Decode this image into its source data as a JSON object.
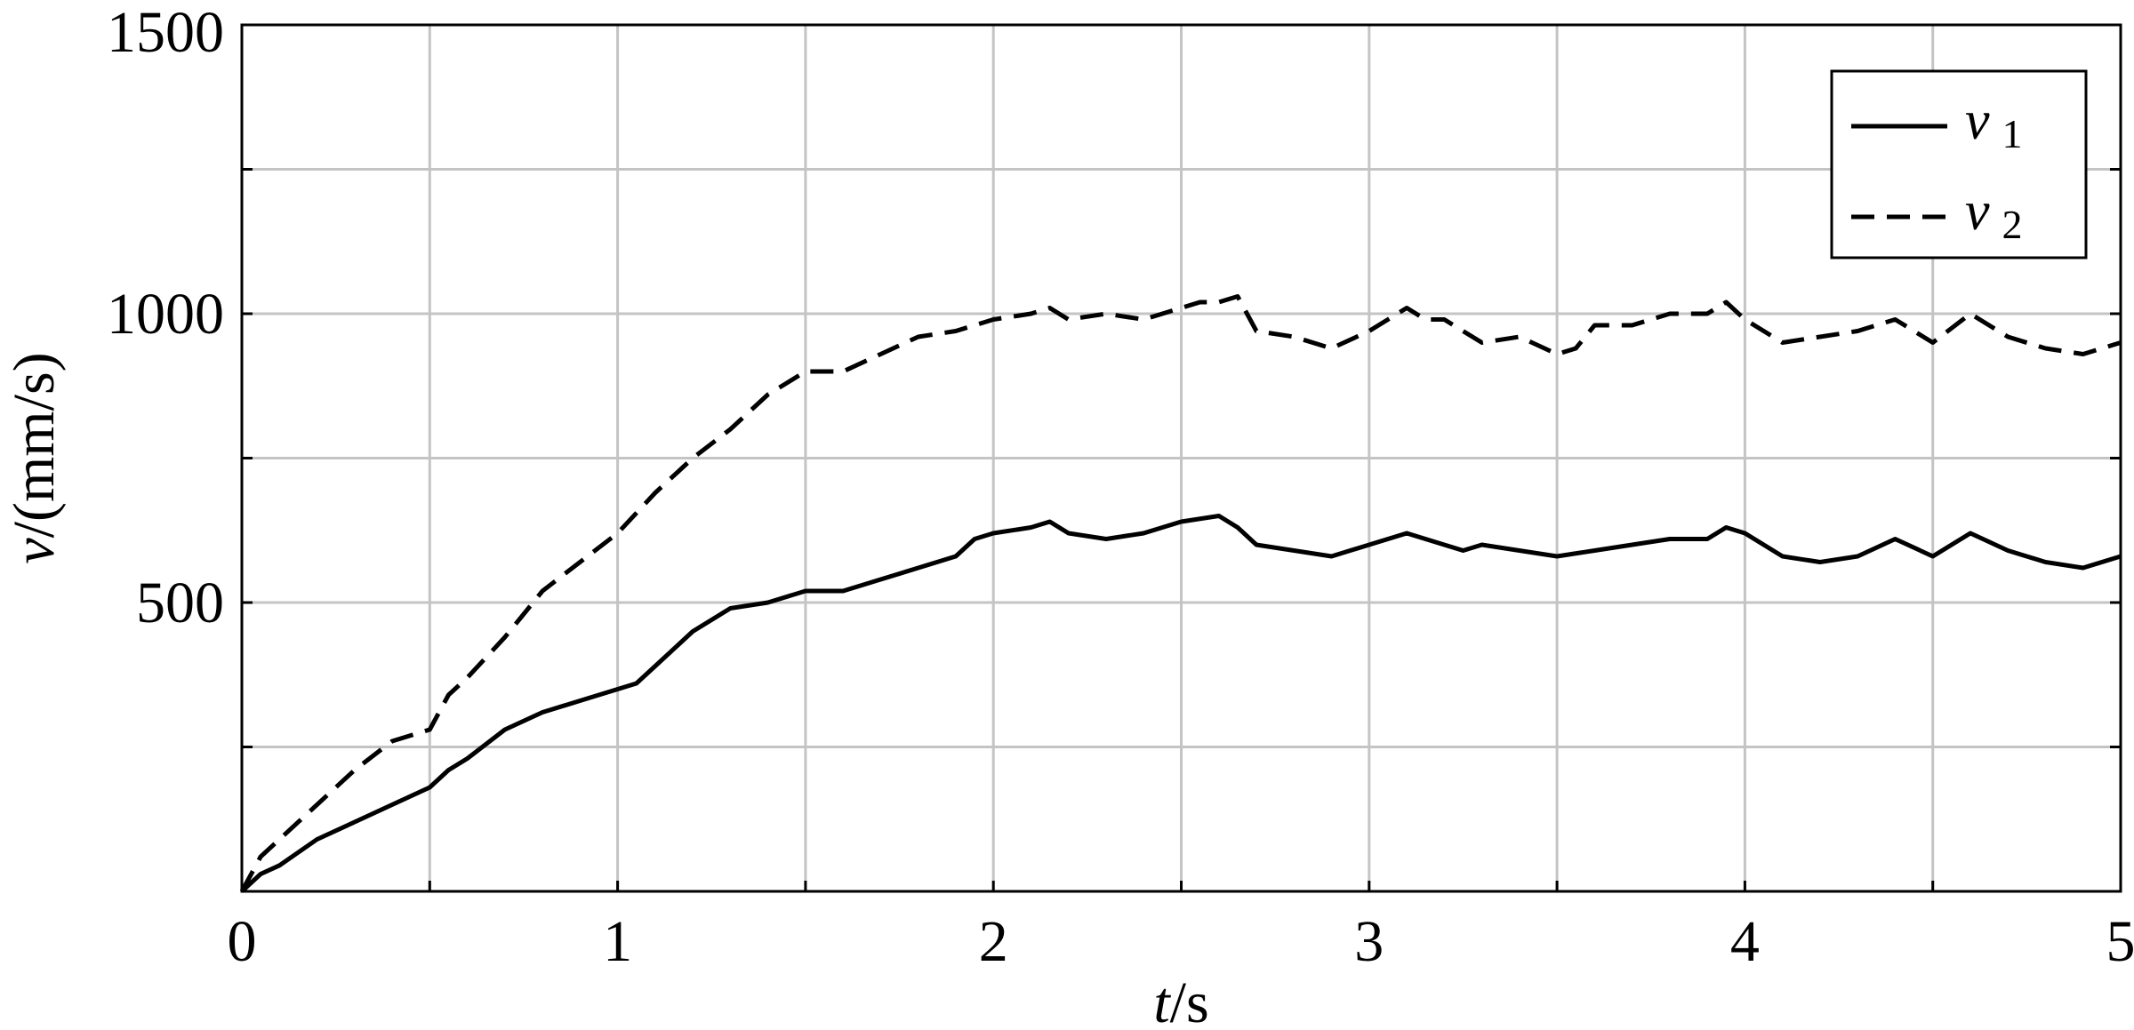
{
  "chart_data": {
    "type": "line",
    "title": "",
    "xlabel": {
      "var": "t",
      "unit": "/s"
    },
    "ylabel": {
      "var": "v",
      "unit": "/(mm/s)"
    },
    "xlim": [
      0,
      5
    ],
    "ylim": [
      0,
      1500
    ],
    "x_ticks": [
      0,
      0.5,
      1,
      1.5,
      2,
      2.5,
      3,
      3.5,
      4,
      4.5,
      5
    ],
    "x_tick_labels": [
      "0",
      "",
      "1",
      "",
      "2",
      "",
      "3",
      "",
      "4",
      "",
      "5"
    ],
    "y_ticks": [
      0,
      250,
      500,
      750,
      1000,
      1250,
      1500
    ],
    "y_tick_labels": [
      "",
      "",
      "500",
      "",
      "1000",
      "",
      "1500"
    ],
    "grid": true,
    "legend_position": "top-right",
    "series": [
      {
        "name": "v",
        "subscript": "1",
        "style": "solid",
        "color": "#000000",
        "x": [
          0,
          0.05,
          0.1,
          0.2,
          0.3,
          0.4,
          0.5,
          0.55,
          0.6,
          0.7,
          0.8,
          0.9,
          1.0,
          1.05,
          1.1,
          1.2,
          1.3,
          1.4,
          1.5,
          1.6,
          1.7,
          1.8,
          1.9,
          1.95,
          2.0,
          2.1,
          2.15,
          2.2,
          2.3,
          2.4,
          2.5,
          2.6,
          2.65,
          2.7,
          2.8,
          2.9,
          3.0,
          3.1,
          3.15,
          3.2,
          3.25,
          3.3,
          3.4,
          3.5,
          3.6,
          3.7,
          3.8,
          3.9,
          3.95,
          4.0,
          4.1,
          4.2,
          4.3,
          4.4,
          4.5,
          4.6,
          4.7,
          4.8,
          4.9,
          5.0
        ],
        "y": [
          0,
          30,
          45,
          90,
          120,
          150,
          180,
          210,
          230,
          280,
          310,
          330,
          350,
          360,
          390,
          450,
          490,
          500,
          520,
          520,
          540,
          560,
          580,
          610,
          620,
          630,
          640,
          620,
          610,
          620,
          640,
          650,
          630,
          600,
          590,
          580,
          600,
          620,
          610,
          600,
          590,
          600,
          590,
          580,
          590,
          600,
          610,
          610,
          630,
          620,
          580,
          570,
          580,
          610,
          580,
          620,
          590,
          570,
          560,
          580
        ]
      },
      {
        "name": "v",
        "subscript": "2",
        "style": "dashed",
        "color": "#000000",
        "x": [
          0,
          0.05,
          0.1,
          0.2,
          0.3,
          0.4,
          0.5,
          0.55,
          0.6,
          0.7,
          0.8,
          0.9,
          1.0,
          1.1,
          1.2,
          1.3,
          1.4,
          1.45,
          1.5,
          1.6,
          1.7,
          1.8,
          1.9,
          2.0,
          2.1,
          2.15,
          2.2,
          2.3,
          2.4,
          2.5,
          2.55,
          2.6,
          2.65,
          2.7,
          2.8,
          2.9,
          3.0,
          3.1,
          3.15,
          3.2,
          3.3,
          3.4,
          3.5,
          3.55,
          3.6,
          3.7,
          3.8,
          3.9,
          3.95,
          4.0,
          4.1,
          4.2,
          4.3,
          4.4,
          4.5,
          4.6,
          4.7,
          4.8,
          4.9,
          5.0
        ],
        "y": [
          0,
          60,
          90,
          150,
          210,
          260,
          280,
          340,
          370,
          440,
          520,
          570,
          620,
          690,
          750,
          800,
          860,
          880,
          900,
          900,
          930,
          960,
          970,
          990,
          1000,
          1010,
          990,
          1000,
          990,
          1010,
          1020,
          1020,
          1030,
          970,
          960,
          940,
          970,
          1010,
          990,
          990,
          950,
          960,
          930,
          940,
          980,
          980,
          1000,
          1000,
          1020,
          990,
          950,
          960,
          970,
          990,
          950,
          1000,
          960,
          940,
          930,
          950
        ]
      }
    ]
  }
}
